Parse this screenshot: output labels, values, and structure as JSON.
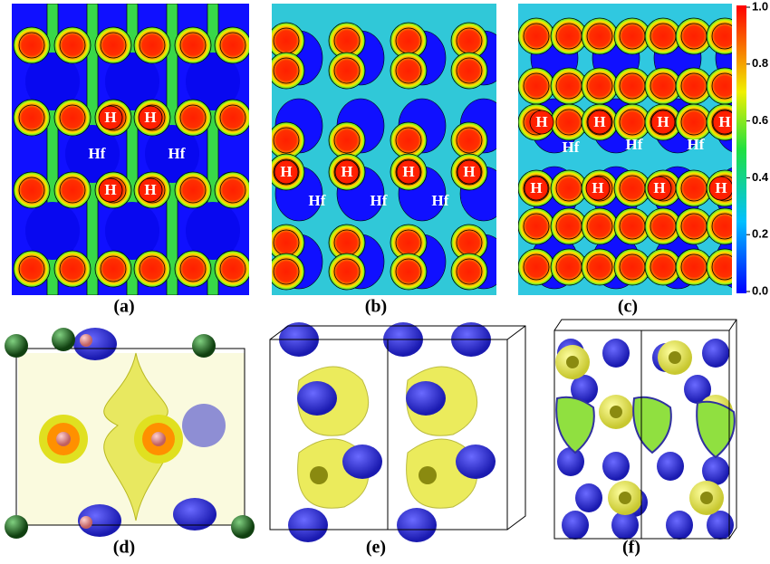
{
  "panels": [
    {
      "label": "(a)",
      "atom_labels": [
        "H",
        "H",
        "H",
        "H",
        "Hf",
        "Hf"
      ]
    },
    {
      "label": "(b)",
      "atom_labels": [
        "H",
        "H",
        "H",
        "H",
        "Hf",
        "Hf",
        "Hf"
      ]
    },
    {
      "label": "(c)",
      "atom_labels": [
        "H",
        "H",
        "H",
        "H",
        "H",
        "H",
        "H",
        "H",
        "Hf",
        "Hf",
        "Hf"
      ]
    },
    {
      "label": "(d)"
    },
    {
      "label": "(e)"
    },
    {
      "label": "(f)"
    }
  ],
  "colorbar": {
    "range": [
      0,
      1
    ],
    "ticks": [
      {
        "value": 0,
        "label": "0.0"
      },
      0.2,
      0.4,
      0.6,
      0.8,
      {
        "value": 1,
        "label": "1.0"
      }
    ]
  }
}
